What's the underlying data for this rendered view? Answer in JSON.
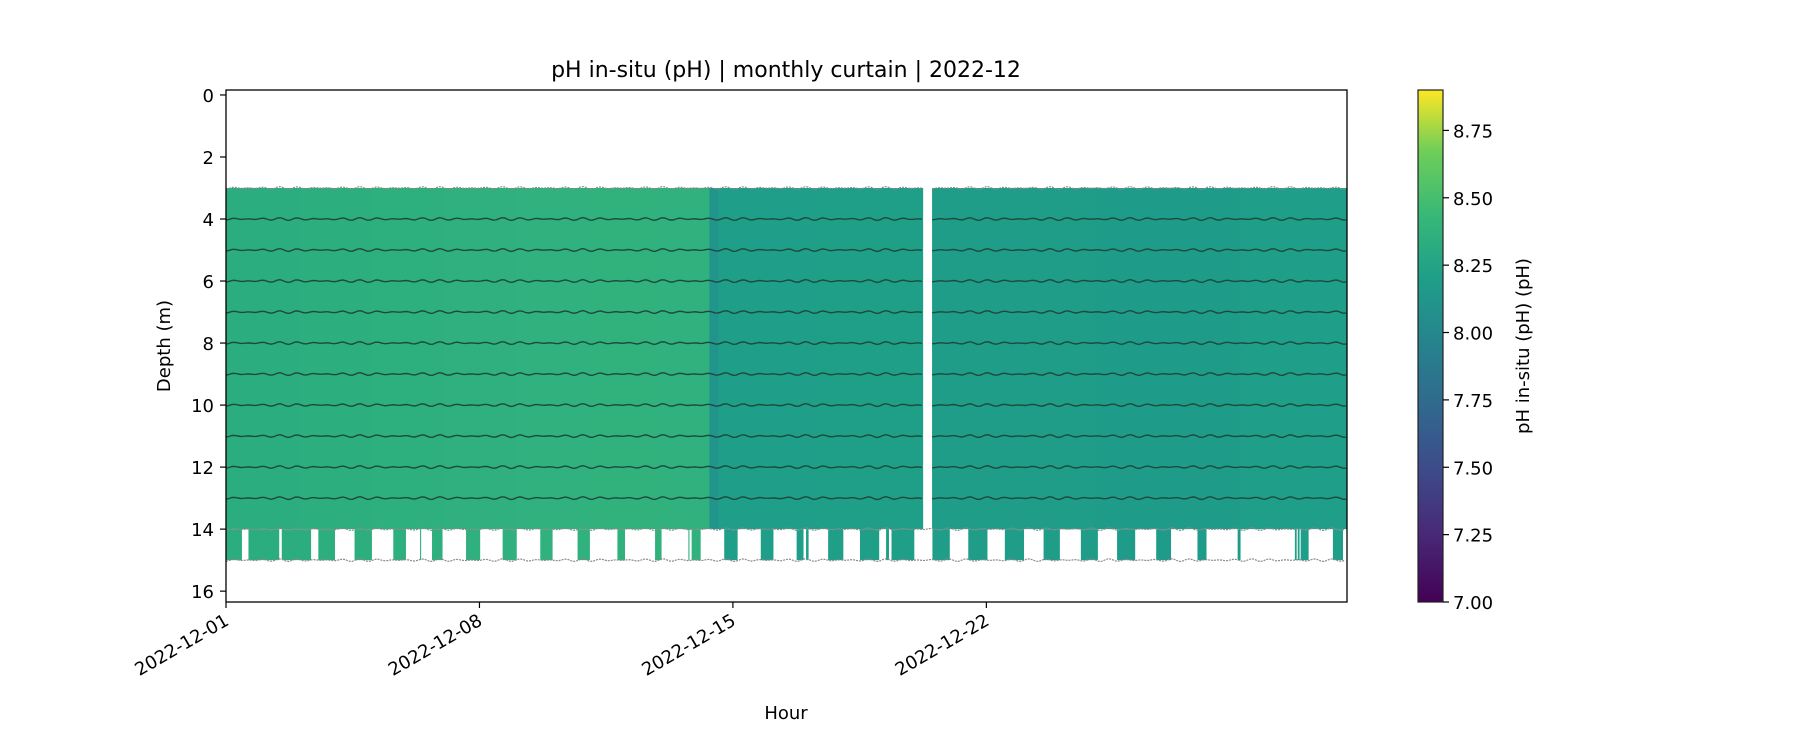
{
  "chart_data": {
    "type": "heatmap",
    "title": "pH in-situ (pH) | monthly curtain | 2022-12",
    "xlabel": "Hour",
    "ylabel": "Depth (m)",
    "x_unit": "days since 2022-12-01",
    "xlim": [
      0,
      30.96
    ],
    "ylim": [
      16.35,
      -0.16
    ],
    "x_ticks": [
      {
        "day": 0,
        "label": "2022-12-01"
      },
      {
        "day": 7,
        "label": "2022-12-08"
      },
      {
        "day": 14,
        "label": "2022-12-15"
      },
      {
        "day": 21,
        "label": "2022-12-22"
      }
    ],
    "y_ticks": [
      0,
      2,
      4,
      6,
      8,
      10,
      12,
      14,
      16
    ],
    "colorbar": {
      "label": "pH in-situ (pH) (pH)",
      "colormap": "viridis",
      "range": [
        7.0,
        8.9
      ],
      "ticks": [
        "7.00",
        "7.25",
        "7.50",
        "7.75",
        "8.00",
        "8.25",
        "8.50",
        "8.75"
      ]
    },
    "depth_bins_continuous": [
      3,
      14
    ],
    "depth_bins_intermittent": [
      14,
      15
    ],
    "segments": [
      {
        "start": 0,
        "end": 2,
        "ph": 8.33
      },
      {
        "start": 2,
        "end": 4,
        "ph": 8.34
      },
      {
        "start": 4,
        "end": 6,
        "ph": 8.35
      },
      {
        "start": 6,
        "end": 8,
        "ph": 8.36
      },
      {
        "start": 8,
        "end": 10,
        "ph": 8.37
      },
      {
        "start": 10,
        "end": 12,
        "ph": 8.38
      },
      {
        "start": 12,
        "end": 13.35,
        "ph": 8.37
      },
      {
        "start": 13.35,
        "end": 13.6,
        "ph": 8.12
      },
      {
        "start": 13.6,
        "end": 16,
        "ph": 8.2
      },
      {
        "start": 16,
        "end": 19.24,
        "ph": 8.21
      },
      {
        "start": 19.5,
        "end": 24,
        "ph": 8.19
      },
      {
        "start": 24,
        "end": 28,
        "ph": 8.18
      },
      {
        "start": 28,
        "end": 30.96,
        "ph": 8.2
      }
    ],
    "bottom_bin_intervals": [
      [
        0,
        0.44
      ],
      [
        0.62,
        1.47
      ],
      [
        1.54,
        2.35
      ],
      [
        2.55,
        3.01
      ],
      [
        3.55,
        4.03
      ],
      [
        4.62,
        4.97
      ],
      [
        5.36,
        5.39
      ],
      [
        5.69,
        5.98
      ],
      [
        6.63,
        7.02
      ],
      [
        7.64,
        8.03
      ],
      [
        8.68,
        9.02
      ],
      [
        9.71,
        10.05
      ],
      [
        10.81,
        11.02
      ],
      [
        11.85,
        12.03
      ],
      [
        12.77,
        12.8
      ],
      [
        12.86,
        13.11
      ],
      [
        13.76,
        14.13
      ],
      [
        14.77,
        15.12
      ],
      [
        15.76,
        15.95
      ],
      [
        16.02,
        16.09
      ],
      [
        16.63,
        17.05
      ],
      [
        17.51,
        18.04
      ],
      [
        18.23,
        18.31
      ],
      [
        18.38,
        19.01
      ],
      [
        19.51,
        19.99
      ],
      [
        20.5,
        21.03
      ],
      [
        21.51,
        22.04
      ],
      [
        22.58,
        23.03
      ],
      [
        23.61,
        24.08
      ],
      [
        24.61,
        25.11
      ],
      [
        25.69,
        26.1
      ],
      [
        26.83,
        27.08
      ],
      [
        27.94,
        28.02
      ],
      [
        29.52,
        29.57
      ],
      [
        29.6,
        29.65
      ],
      [
        29.68,
        29.9
      ],
      [
        30.57,
        30.85
      ]
    ]
  }
}
